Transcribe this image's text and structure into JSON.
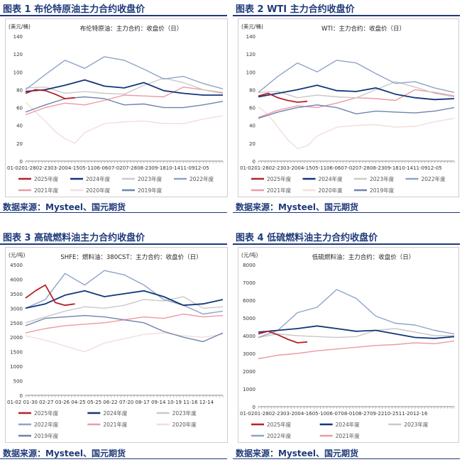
{
  "colors": {
    "2025": "#b8202a",
    "2024": "#13357a",
    "2023": "#c9c9c9",
    "2022": "#8ea3c7",
    "2021": "#ec9aa4",
    "2020": "#f1dede",
    "2019": "#6f83ad",
    "title": "#1f3a7a"
  },
  "panels": [
    {
      "title": "图表 1  布伦特原油主力合约收盘价",
      "source": "数据来源：Mysteel、国元期货",
      "chart_data": {
        "type": "line",
        "title": "布伦特原油：主力合约：收盘价（日）",
        "ylabel": "(美元/桶)",
        "ylim": [
          0,
          140
        ],
        "yticks": [
          "0",
          "20",
          "40",
          "60",
          "80",
          "100",
          "120",
          "140"
        ],
        "xticks": [
          "01-02",
          "01-28",
          "02-23",
          "03-20",
          "04-15",
          "05-11",
          "06-06",
          "07-02",
          "07-28",
          "08-23",
          "09-18",
          "10-14",
          "11-09",
          "12-05"
        ],
        "x_axis_text": "01-0201-2802-2303-2004-1505-1106-0607-0207-2808-2309-1810-1411-0912-05",
        "legend_order": [
          "2025",
          "2024",
          "2023",
          "2022",
          "2021",
          "2020",
          "2019"
        ],
        "legend_labels": [
          "2025年度",
          "2024年度",
          "2023年度",
          "2022年度",
          "2021年度",
          "2020年度",
          "2019年度"
        ],
        "legend_rows": 2,
        "series": [
          {
            "name": "2025年度",
            "key": "2025",
            "x": [
              0,
              0.05,
              0.1,
              0.15,
              0.2,
              0.25
            ],
            "values": [
              76,
              80,
              79,
              75,
              70,
              71
            ]
          },
          {
            "name": "2024年度",
            "key": "2024",
            "x": [
              0,
              0.1,
              0.2,
              0.3,
              0.4,
              0.5,
              0.6,
              0.7,
              0.8,
              0.9,
              1.0
            ],
            "values": [
              78,
              80,
              85,
              91,
              84,
              82,
              88,
              79,
              76,
              74,
              74
            ]
          },
          {
            "name": "2023年度",
            "key": "2023",
            "x": [
              0,
              0.1,
              0.2,
              0.3,
              0.4,
              0.5,
              0.6,
              0.7,
              0.8,
              0.9,
              1.0
            ],
            "values": [
              82,
              83,
              76,
              78,
              76,
              75,
              85,
              93,
              88,
              80,
              77
            ]
          },
          {
            "name": "2022年度",
            "key": "2022",
            "x": [
              0,
              0.1,
              0.2,
              0.3,
              0.4,
              0.5,
              0.6,
              0.7,
              0.8,
              0.9,
              1.0
            ],
            "values": [
              80,
              97,
              113,
              104,
              117,
              113,
              103,
              92,
              95,
              87,
              81
            ]
          },
          {
            "name": "2021年度",
            "key": "2021",
            "x": [
              0,
              0.1,
              0.2,
              0.3,
              0.4,
              0.5,
              0.6,
              0.7,
              0.8,
              0.9,
              1.0
            ],
            "values": [
              52,
              60,
              65,
              63,
              68,
              74,
              73,
              72,
              83,
              80,
              76
            ]
          },
          {
            "name": "2020年度",
            "key": "2020",
            "x": [
              0,
              0.05,
              0.1,
              0.15,
              0.2,
              0.25,
              0.3,
              0.4,
              0.5,
              0.6,
              0.7,
              0.8,
              0.9,
              1.0
            ],
            "values": [
              66,
              55,
              45,
              33,
              25,
              20,
              32,
              42,
              44,
              45,
              42,
              42,
              47,
              51
            ]
          },
          {
            "name": "2019年度",
            "key": "2019",
            "x": [
              0,
              0.1,
              0.2,
              0.3,
              0.4,
              0.5,
              0.6,
              0.7,
              0.8,
              0.9,
              1.0
            ],
            "values": [
              55,
              63,
              70,
              72,
              70,
              63,
              64,
              60,
              60,
              63,
              67
            ]
          }
        ]
      }
    },
    {
      "title": "图表 2 WTI 主力合约收盘价",
      "source": "数据来源：Mysteel、国元期货",
      "chart_data": {
        "type": "line",
        "title": "WTI：主力合约：收盘价（日）",
        "ylabel": "(美元/桶)",
        "ylim": [
          0,
          140
        ],
        "yticks": [
          "0",
          "20",
          "40",
          "60",
          "80",
          "100",
          "120",
          "140"
        ],
        "xticks": [
          "01-02",
          "01-28",
          "02-23",
          "03-20",
          "04-15",
          "05-11",
          "06-06",
          "07-02",
          "07-28",
          "08-23",
          "09-18",
          "10-14",
          "11-09",
          "12-05"
        ],
        "x_axis_text": "01-0201-2802-2303-2004-1505-1106-0607-0207-2808-2309-1810-1411-0912-05",
        "legend_order": [
          "2025",
          "2024",
          "2023",
          "2022",
          "2021",
          "2020",
          "2019"
        ],
        "legend_labels": [
          "2025年度",
          "2024年度",
          "2023年度",
          "2022年度",
          "2021年度",
          "2020年度",
          "2019年度"
        ],
        "legend_rows": 2,
        "series": [
          {
            "name": "2025年度",
            "key": "2025",
            "x": [
              0,
              0.05,
              0.1,
              0.15,
              0.2,
              0.25
            ],
            "values": [
              73,
              76,
              71,
              68,
              66,
              67
            ]
          },
          {
            "name": "2024年度",
            "key": "2024",
            "x": [
              0,
              0.1,
              0.2,
              0.3,
              0.4,
              0.5,
              0.6,
              0.7,
              0.8,
              0.9,
              1.0
            ],
            "values": [
              72,
              76,
              80,
              85,
              79,
              78,
              82,
              75,
              71,
              69,
              70
            ]
          },
          {
            "name": "2023年度",
            "key": "2023",
            "x": [
              0,
              0.1,
              0.2,
              0.3,
              0.4,
              0.5,
              0.6,
              0.7,
              0.8,
              0.9,
              1.0
            ],
            "values": [
              77,
              78,
              71,
              74,
              72,
              71,
              80,
              89,
              83,
              76,
              72
            ]
          },
          {
            "name": "2022年度",
            "key": "2022",
            "x": [
              0,
              0.1,
              0.2,
              0.3,
              0.4,
              0.5,
              0.6,
              0.7,
              0.8,
              0.9,
              1.0
            ],
            "values": [
              77,
              95,
              110,
              100,
              113,
              110,
              98,
              87,
              89,
              82,
              77
            ]
          },
          {
            "name": "2021年度",
            "key": "2021",
            "x": [
              0,
              0.1,
              0.2,
              0.3,
              0.4,
              0.5,
              0.6,
              0.7,
              0.8,
              0.9,
              1.0
            ],
            "values": [
              49,
              57,
              62,
              60,
              65,
              71,
              70,
              68,
              80,
              77,
              73
            ]
          },
          {
            "name": "2020年度",
            "key": "2020",
            "x": [
              0,
              0.05,
              0.1,
              0.15,
              0.2,
              0.25,
              0.3,
              0.4,
              0.5,
              0.6,
              0.7,
              0.8,
              0.9,
              1.0
            ],
            "values": [
              61,
              52,
              38,
              24,
              14,
              17,
              28,
              38,
              40,
              41,
              38,
              39,
              44,
              48
            ]
          },
          {
            "name": "2019年度",
            "key": "2019",
            "x": [
              0,
              0.1,
              0.2,
              0.3,
              0.4,
              0.5,
              0.6,
              0.7,
              0.8,
              0.9,
              1.0
            ],
            "values": [
              48,
              55,
              60,
              63,
              60,
              53,
              56,
              55,
              54,
              56,
              60
            ]
          }
        ]
      }
    },
    {
      "title": "图表 3 高硫燃料油主力合约收盘价",
      "source": "数据来源：Mysteel、国元期货",
      "chart_data": {
        "type": "line",
        "title": "SHFE：燃料油：380CST：主力合约：收盘价（日）",
        "ylabel": "(元/吨)",
        "ylim": [
          0,
          4500
        ],
        "yticks": [
          "0",
          "500",
          "1000",
          "1500",
          "2000",
          "2500",
          "3000",
          "3500",
          "4000",
          "4500"
        ],
        "xticks": [
          "01-02",
          "01-30",
          "02-27",
          "03-26",
          "04-25",
          "05-25",
          "06-22",
          "07-20",
          "08-17",
          "09-14",
          "10-19",
          "11-16",
          "12-14"
        ],
        "x_axis_text": "01-02 01-30 02-27 03-26 04-25 05-25 06-22 07-20 08-17 09-14 10-19 11-16 12-14",
        "legend_order": [
          "2025",
          "2024",
          "2023",
          "2022",
          "2021",
          "2020",
          "2019"
        ],
        "legend_labels": [
          "2025年度",
          "2024年度",
          "2023年度",
          "2022年度",
          "2021年度",
          "2020年度",
          "2019年度"
        ],
        "legend_rows": 3,
        "series": [
          {
            "name": "2025年度",
            "key": "2025",
            "x": [
              0,
              0.05,
              0.1,
              0.15,
              0.2,
              0.25
            ],
            "values": [
              3350,
              3600,
              3800,
              3200,
              3100,
              3150
            ]
          },
          {
            "name": "2024年度",
            "key": "2024",
            "x": [
              0,
              0.1,
              0.2,
              0.3,
              0.4,
              0.5,
              0.6,
              0.7,
              0.8,
              0.9,
              1.0
            ],
            "values": [
              3000,
              3150,
              3450,
              3600,
              3400,
              3500,
              3600,
              3400,
              3100,
              3150,
              3300
            ]
          },
          {
            "name": "2023年度",
            "key": "2023",
            "x": [
              0,
              0.1,
              0.2,
              0.3,
              0.4,
              0.5,
              0.6,
              0.7,
              0.8,
              0.9,
              1.0
            ],
            "values": [
              2500,
              2700,
              2900,
              3050,
              3000,
              3100,
              3300,
              3250,
              3400,
              3000,
              3050
            ]
          },
          {
            "name": "2022年度",
            "key": "2022",
            "x": [
              0,
              0.1,
              0.2,
              0.3,
              0.4,
              0.5,
              0.6,
              0.7,
              0.8,
              0.9,
              1.0
            ],
            "values": [
              3000,
              3300,
              4200,
              3800,
              4300,
              4150,
              3800,
              3300,
              3100,
              2800,
              2900
            ]
          },
          {
            "name": "2021年度",
            "key": "2021",
            "x": [
              0,
              0.1,
              0.2,
              0.3,
              0.4,
              0.5,
              0.6,
              0.7,
              0.8,
              0.9,
              1.0
            ],
            "values": [
              2150,
              2300,
              2400,
              2450,
              2500,
              2600,
              2700,
              2650,
              2800,
              2700,
              2750
            ]
          },
          {
            "name": "2020年度",
            "key": "2020",
            "x": [
              0,
              0.1,
              0.2,
              0.3,
              0.4,
              0.5,
              0.6,
              0.7,
              0.8,
              0.9,
              1.0
            ],
            "values": [
              2050,
              1900,
              1700,
              1500,
              1800,
              1950,
              2100,
              2150,
              2050,
              2000,
              2100
            ]
          },
          {
            "name": "2019年度",
            "key": "2019",
            "x": [
              0,
              0.1,
              0.2,
              0.3,
              0.4,
              0.5,
              0.6,
              0.7,
              0.8,
              0.9,
              1.0
            ],
            "values": [
              2400,
              2650,
              2700,
              2750,
              2700,
              2600,
              2500,
              2200,
              2000,
              1850,
              2150
            ]
          }
        ]
      }
    },
    {
      "title": "图表 4 低硫燃料油主力合约收盘价",
      "source": "数据来源：Mysteel、国元期货",
      "chart_data": {
        "type": "line",
        "title": "低硫燃料油：主力合约：收盘价（日）",
        "ylabel": "(元/吨)",
        "ylim": [
          0,
          8000
        ],
        "yticks": [
          "0",
          "1000",
          "2000",
          "3000",
          "4000",
          "5000",
          "6000",
          "7000",
          "8000"
        ],
        "xticks": [
          "01-02",
          "01-28",
          "02-23",
          "03-20",
          "04-16",
          "05-10",
          "06-07",
          "08-01",
          "08-27",
          "09-22",
          "10-25",
          "11-20",
          "12-16"
        ],
        "x_axis_text": "01-0201-2802-2303-2004-1605-1006-0708-0108-2709-2210-2511-2012-16",
        "legend_order": [
          "2025",
          "2024",
          "2023",
          "2022",
          "2021"
        ],
        "legend_labels": [
          "2025年度",
          "2024年度",
          "2023年度",
          "2022年度",
          "2021年度"
        ],
        "legend_rows": 2,
        "series": [
          {
            "name": "2025年度",
            "key": "2025",
            "x": [
              0,
              0.05,
              0.1,
              0.15,
              0.2,
              0.25
            ],
            "values": [
              4100,
              4250,
              4050,
              3800,
              3600,
              3650
            ]
          },
          {
            "name": "2024年度",
            "key": "2024",
            "x": [
              0,
              0.1,
              0.2,
              0.3,
              0.4,
              0.5,
              0.6,
              0.7,
              0.8,
              0.9,
              1.0
            ],
            "values": [
              4200,
              4300,
              4400,
              4550,
              4400,
              4250,
              4300,
              4100,
              3900,
              3850,
              3950
            ]
          },
          {
            "name": "2023年度",
            "key": "2023",
            "x": [
              0,
              0.1,
              0.2,
              0.3,
              0.4,
              0.5,
              0.6,
              0.7,
              0.8,
              0.9,
              1.0
            ],
            "values": [
              3900,
              4100,
              4000,
              3950,
              3900,
              3950,
              4300,
              4400,
              4200,
              4000,
              4000
            ]
          },
          {
            "name": "2022年度",
            "key": "2022",
            "x": [
              0,
              0.1,
              0.2,
              0.3,
              0.4,
              0.5,
              0.6,
              0.7,
              0.8,
              0.9,
              1.0
            ],
            "values": [
              3900,
              4300,
              5300,
              5600,
              6600,
              6100,
              5100,
              4700,
              4600,
              4300,
              4100
            ]
          },
          {
            "name": "2021年度",
            "key": "2021",
            "x": [
              0,
              0.1,
              0.2,
              0.3,
              0.4,
              0.5,
              0.6,
              0.7,
              0.8,
              0.9,
              1.0
            ],
            "values": [
              2700,
              2900,
              3000,
              3150,
              3250,
              3350,
              3450,
              3500,
              3600,
              3550,
              3700
            ]
          }
        ]
      }
    }
  ]
}
